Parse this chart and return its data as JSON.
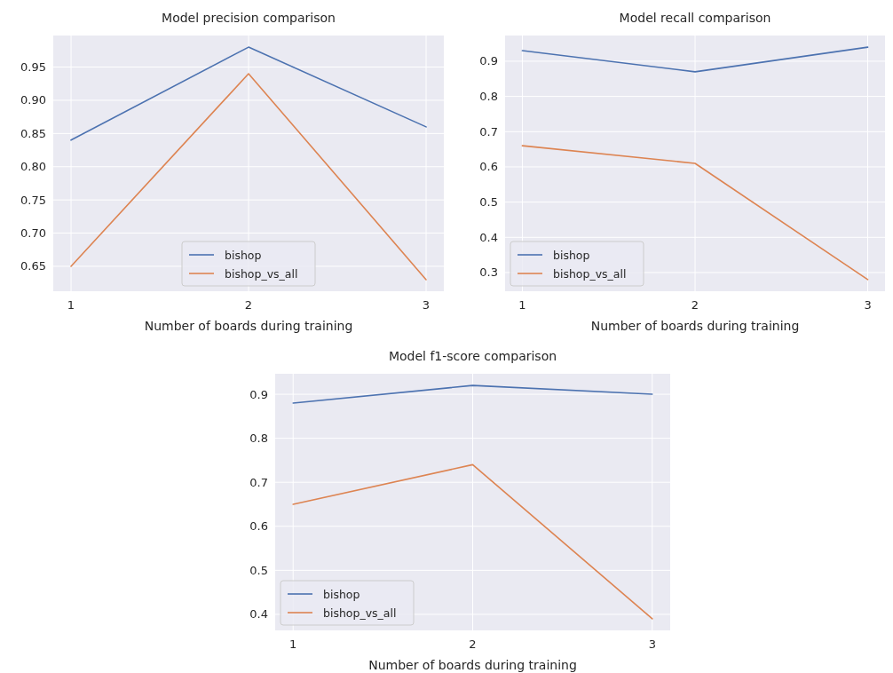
{
  "chart_data": [
    {
      "type": "line",
      "title": "Model precision comparison",
      "xlabel": "Number of boards during training",
      "x": [
        1,
        2,
        3
      ],
      "xlim": [
        0.9,
        3.1
      ],
      "xticks": [
        1,
        2,
        3
      ],
      "ylim": [
        0.6125,
        0.9975
      ],
      "yticks": [
        {
          "value": 0.65,
          "label": "0.65"
        },
        {
          "value": 0.7,
          "label": "0.70"
        },
        {
          "value": 0.75,
          "label": "0.75"
        },
        {
          "value": 0.8,
          "label": "0.80"
        },
        {
          "value": 0.85,
          "label": "0.85"
        },
        {
          "value": 0.9,
          "label": "0.90"
        },
        {
          "value": 0.95,
          "label": "0.95"
        }
      ],
      "grid": true,
      "legend": "bottom",
      "series": [
        {
          "name": "bishop",
          "color": "#4c72b0",
          "values": [
            0.84,
            0.98,
            0.86
          ]
        },
        {
          "name": "bishop_vs_all",
          "color": "#dd8452",
          "values": [
            0.65,
            0.94,
            0.63
          ]
        }
      ]
    },
    {
      "type": "line",
      "title": "Model recall comparison",
      "xlabel": "Number of boards during training",
      "x": [
        1,
        2,
        3
      ],
      "xlim": [
        0.9,
        3.1
      ],
      "xticks": [
        1,
        2,
        3
      ],
      "ylim": [
        0.247,
        0.973
      ],
      "yticks": [
        0.3,
        0.4,
        0.5,
        0.6,
        0.7,
        0.8,
        0.9
      ],
      "grid": true,
      "legend": "bottom left",
      "series": [
        {
          "name": "bishop",
          "color": "#4c72b0",
          "values": [
            0.93,
            0.87,
            0.94
          ]
        },
        {
          "name": "bishop_vs_all",
          "color": "#dd8452",
          "values": [
            0.66,
            0.61,
            0.28
          ]
        }
      ]
    },
    {
      "type": "line",
      "title": "Model f1-score comparison",
      "xlabel": "Number of boards during training",
      "x": [
        1,
        2,
        3
      ],
      "xlim": [
        0.9,
        3.1
      ],
      "xticks": [
        1,
        2,
        3
      ],
      "ylim": [
        0.3635,
        0.9465
      ],
      "yticks": [
        0.4,
        0.5,
        0.6,
        0.7,
        0.8,
        0.9
      ],
      "grid": true,
      "legend": "bottom left",
      "series": [
        {
          "name": "bishop",
          "color": "#4c72b0",
          "values": [
            0.88,
            0.92,
            0.9
          ]
        },
        {
          "name": "bishop_vs_all",
          "color": "#dd8452",
          "values": [
            0.65,
            0.74,
            0.39
          ]
        }
      ]
    }
  ]
}
